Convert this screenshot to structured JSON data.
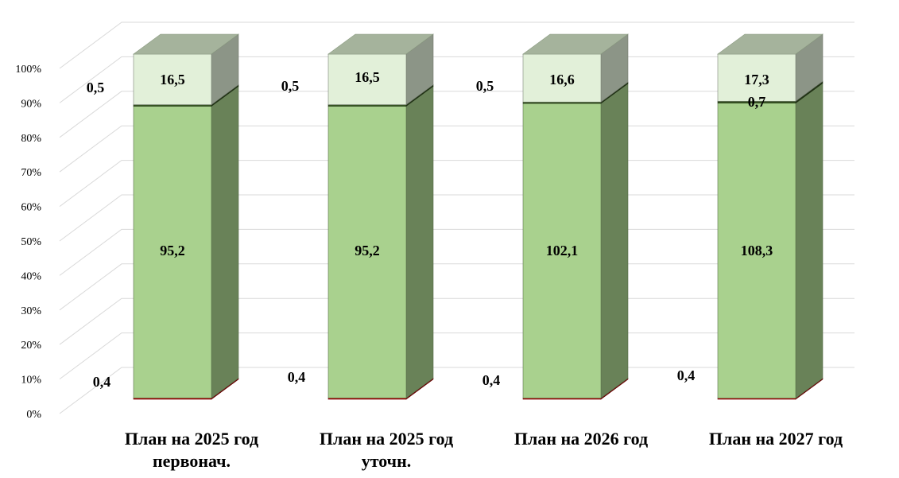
{
  "chart_data": {
    "type": "bar",
    "stacked": "percent",
    "three_d": true,
    "categories": [
      [
        "План на 2025 год",
        "первонач."
      ],
      [
        "План на 2025 год",
        "уточн."
      ],
      [
        "План на 2026 год"
      ],
      [
        "План на 2027 год"
      ]
    ],
    "series": [
      {
        "values": [
          0.4,
          0.4,
          0.4,
          0.4
        ],
        "color": "#c00000"
      },
      {
        "values": [
          95.2,
          95.2,
          102.1,
          108.3
        ],
        "color": "#a9d18e"
      },
      {
        "values": [
          0.5,
          0.5,
          0.5,
          0.7
        ],
        "color": "#385723"
      },
      {
        "values": [
          16.5,
          16.5,
          16.6,
          17.3
        ],
        "color": "#e2f0d9"
      }
    ],
    "data_labels": [
      [
        "0,4",
        "0,4",
        "0,4",
        "0,4"
      ],
      [
        "95,2",
        "95,2",
        "102,1",
        "108,3"
      ],
      [
        "0,5",
        "0,5",
        "0,5",
        "0,7"
      ],
      [
        "16,5",
        "16,5",
        "16,6",
        "17,3"
      ]
    ],
    "y_ticks": [
      "0%",
      "10%",
      "20%",
      "30%",
      "40%",
      "50%",
      "60%",
      "70%",
      "80%",
      "90%",
      "100%"
    ],
    "ylim": [
      0,
      100
    ],
    "grid": true,
    "legend": "none"
  }
}
